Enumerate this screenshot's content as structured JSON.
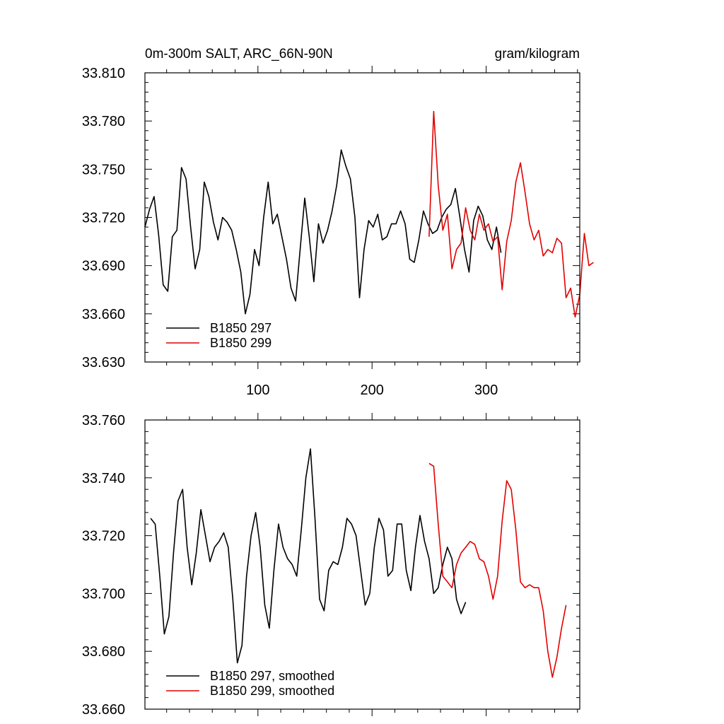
{
  "chart_data": [
    {
      "type": "line",
      "title": "0m-300m SALT, ARC_66N-90N",
      "units": "gram/kilogram",
      "xlim": [
        1,
        382
      ],
      "ylim": [
        33.63,
        33.81
      ],
      "x_ticks": [
        100,
        200,
        300
      ],
      "y_ticks": [
        "33.630",
        "33.660",
        "33.690",
        "33.720",
        "33.750",
        "33.780",
        "33.810"
      ],
      "legend_position": "bottom-left",
      "series": [
        {
          "name": "B1850 297",
          "color": "#000000",
          "x_start": 1,
          "x_step": 4,
          "values": [
            33.714,
            33.725,
            33.733,
            33.709,
            33.678,
            33.674,
            33.708,
            33.712,
            33.751,
            33.744,
            33.714,
            33.688,
            33.7,
            33.742,
            33.733,
            33.717,
            33.706,
            33.72,
            33.717,
            33.712,
            33.7,
            33.686,
            33.66,
            33.672,
            33.7,
            33.69,
            33.72,
            33.742,
            33.716,
            33.722,
            33.708,
            33.694,
            33.676,
            33.668,
            33.7,
            33.732,
            33.708,
            33.68,
            33.716,
            33.704,
            33.712,
            33.724,
            33.74,
            33.762,
            33.752,
            33.744,
            33.72,
            33.67,
            33.7,
            33.718,
            33.714,
            33.722,
            33.706,
            33.708,
            33.716,
            33.716,
            33.724,
            33.716,
            33.694,
            33.692,
            33.706,
            33.724,
            33.716,
            33.71,
            33.712,
            33.72,
            33.725,
            33.728,
            33.738,
            33.72,
            33.7,
            33.686,
            33.718,
            33.727,
            33.721,
            33.706,
            33.7,
            33.714,
            33.698
          ]
        },
        {
          "name": "B1850 299",
          "color": "#e30000",
          "x_start": 250,
          "x_step": 4,
          "values": [
            33.708,
            33.786,
            33.74,
            33.712,
            33.722,
            33.688,
            33.7,
            33.704,
            33.726,
            33.712,
            33.706,
            33.722,
            33.712,
            33.716,
            33.705,
            33.708,
            33.675,
            33.705,
            33.718,
            33.742,
            33.754,
            33.736,
            33.716,
            33.706,
            33.712,
            33.696,
            33.7,
            33.698,
            33.707,
            33.704,
            33.67,
            33.676,
            33.658,
            33.672,
            33.71,
            33.69,
            33.692
          ]
        }
      ]
    },
    {
      "type": "line",
      "xlim": [
        1,
        382
      ],
      "ylim": [
        33.66,
        33.76
      ],
      "y_ticks": [
        "33.660",
        "33.680",
        "33.700",
        "33.720",
        "33.740",
        "33.760"
      ],
      "legend_position": "bottom-left",
      "series": [
        {
          "name": "B1850 297, smoothed",
          "color": "#000000",
          "x_start": 6,
          "x_step": 4,
          "values": [
            33.726,
            33.724,
            33.706,
            33.686,
            33.692,
            33.714,
            33.732,
            33.736,
            33.716,
            33.703,
            33.714,
            33.729,
            33.72,
            33.711,
            33.716,
            33.718,
            33.721,
            33.716,
            33.698,
            33.676,
            33.682,
            33.706,
            33.72,
            33.728,
            33.716,
            33.696,
            33.688,
            33.708,
            33.724,
            33.716,
            33.712,
            33.71,
            33.706,
            33.722,
            33.74,
            33.75,
            33.726,
            33.698,
            33.694,
            33.708,
            33.711,
            33.71,
            33.716,
            33.726,
            33.724,
            33.72,
            33.708,
            33.696,
            33.7,
            33.716,
            33.726,
            33.722,
            33.706,
            33.708,
            33.724,
            33.724,
            33.708,
            33.701,
            33.716,
            33.727,
            33.718,
            33.712,
            33.7,
            33.702,
            33.71,
            33.716,
            33.712,
            33.698,
            33.693,
            33.697
          ]
        },
        {
          "name": "B1850 299, smoothed",
          "color": "#e30000",
          "x_start": 250,
          "x_step": 4,
          "values": [
            33.745,
            33.744,
            33.724,
            33.706,
            33.704,
            33.702,
            33.71,
            33.714,
            33.716,
            33.718,
            33.717,
            33.712,
            33.711,
            33.706,
            33.698,
            33.706,
            33.725,
            33.739,
            33.736,
            33.722,
            33.704,
            33.702,
            33.703,
            33.702,
            33.702,
            33.694,
            33.68,
            33.671,
            33.678,
            33.688,
            33.696
          ]
        }
      ]
    }
  ]
}
